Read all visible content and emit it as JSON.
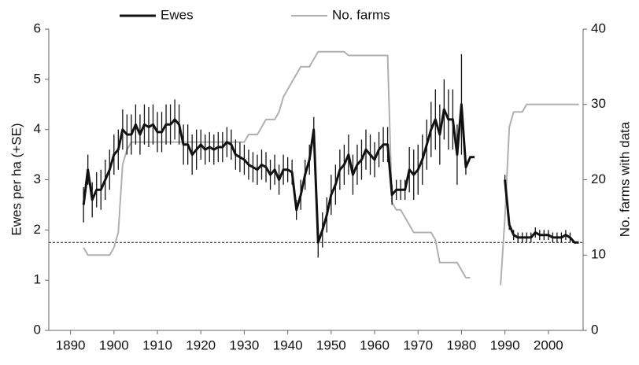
{
  "chart_data": {
    "type": "line",
    "x": [
      1893,
      1894,
      1895,
      1896,
      1897,
      1898,
      1899,
      1900,
      1901,
      1902,
      1903,
      1904,
      1905,
      1906,
      1907,
      1908,
      1909,
      1910,
      1911,
      1912,
      1913,
      1914,
      1915,
      1916,
      1917,
      1918,
      1919,
      1920,
      1921,
      1922,
      1923,
      1924,
      1925,
      1926,
      1927,
      1928,
      1929,
      1930,
      1931,
      1932,
      1933,
      1934,
      1935,
      1936,
      1937,
      1938,
      1939,
      1940,
      1941,
      1942,
      1943,
      1944,
      1945,
      1946,
      1947,
      1948,
      1949,
      1950,
      1951,
      1952,
      1953,
      1954,
      1955,
      1956,
      1957,
      1958,
      1959,
      1960,
      1961,
      1962,
      1963,
      1964,
      1965,
      1966,
      1967,
      1968,
      1969,
      1970,
      1971,
      1972,
      1973,
      1974,
      1975,
      1976,
      1977,
      1978,
      1979,
      1980,
      1981,
      1982,
      1983,
      1984,
      1985,
      1986,
      1987,
      1988,
      1989,
      1990,
      1991,
      1992,
      1993,
      1994,
      1995,
      1996,
      1997,
      1998,
      1999,
      2000,
      2001,
      2002,
      2003,
      2004,
      2005,
      2006,
      2007
    ],
    "series": [
      {
        "name": "Ewes",
        "color": "#111111",
        "values": [
          2.5,
          3.2,
          2.6,
          2.8,
          2.8,
          3.0,
          3.2,
          3.5,
          3.6,
          4.0,
          3.9,
          3.9,
          4.1,
          3.9,
          4.1,
          4.05,
          4.1,
          3.95,
          3.95,
          4.1,
          4.1,
          4.2,
          4.1,
          3.7,
          3.7,
          3.5,
          3.6,
          3.7,
          3.6,
          3.65,
          3.6,
          3.65,
          3.65,
          3.75,
          3.7,
          3.5,
          3.45,
          3.4,
          3.3,
          3.25,
          3.2,
          3.3,
          3.25,
          3.1,
          3.2,
          3.0,
          3.2,
          3.2,
          3.15,
          2.4,
          2.7,
          3.1,
          3.4,
          4.0,
          1.75,
          2.0,
          2.3,
          2.7,
          2.9,
          3.2,
          3.3,
          3.5,
          3.1,
          3.3,
          3.4,
          3.6,
          3.5,
          3.4,
          3.6,
          3.7,
          3.7,
          2.7,
          2.8,
          2.8,
          2.8,
          3.2,
          3.1,
          3.2,
          3.4,
          3.7,
          4.0,
          4.2,
          3.9,
          4.4,
          4.2,
          4.2,
          3.5,
          4.5,
          3.25,
          3.45,
          3.45,
          null,
          null,
          null,
          null,
          null,
          null,
          3.0,
          2.1,
          1.9,
          1.85,
          1.85,
          1.85,
          1.85,
          1.95,
          1.9,
          1.9,
          1.9,
          1.85,
          1.85,
          1.85,
          1.9,
          1.85,
          1.75,
          1.75
        ],
        "errors": [
          0.35,
          0.3,
          0.35,
          0.35,
          0.4,
          0.4,
          0.4,
          0.4,
          0.4,
          0.4,
          0.4,
          0.4,
          0.4,
          0.4,
          0.4,
          0.4,
          0.4,
          0.4,
          0.4,
          0.4,
          0.4,
          0.4,
          0.4,
          0.4,
          0.4,
          0.4,
          0.4,
          0.3,
          0.3,
          0.3,
          0.3,
          0.3,
          0.3,
          0.3,
          0.3,
          0.3,
          0.3,
          0.3,
          0.3,
          0.3,
          0.3,
          0.3,
          0.3,
          0.3,
          0.3,
          0.3,
          0.3,
          0.25,
          0.25,
          0.2,
          0.3,
          0.3,
          0.3,
          0.25,
          0.3,
          0.35,
          0.35,
          0.4,
          0.4,
          0.4,
          0.4,
          0.4,
          0.4,
          0.4,
          0.4,
          0.4,
          0.4,
          0.35,
          0.35,
          0.35,
          0.35,
          0.2,
          0.2,
          0.2,
          0.2,
          0.45,
          0.5,
          0.5,
          0.5,
          0.5,
          0.55,
          0.6,
          0.6,
          0.6,
          0.6,
          0.6,
          0.6,
          1.0,
          0.15,
          null,
          null,
          null,
          null,
          null,
          null,
          null,
          null,
          0.1,
          0.1,
          0.1,
          0.1,
          0.1,
          0.1,
          0.1,
          0.1,
          0.1,
          0.1,
          0.1,
          0.1,
          0.1,
          0.1,
          0.1,
          0.1,
          null,
          null
        ]
      },
      {
        "name": "No. farms",
        "color": "#b0b0b0",
        "axis": "y2",
        "values": [
          11,
          10,
          10,
          10,
          10,
          10,
          10,
          11,
          13,
          22,
          24,
          25,
          25,
          25,
          25,
          25,
          25,
          25,
          25,
          25,
          25,
          25,
          25,
          25,
          25,
          25,
          25,
          25,
          25,
          25,
          25,
          25,
          25,
          25,
          25,
          25,
          25,
          25,
          26,
          26,
          26,
          27,
          28,
          28,
          28,
          29,
          31,
          32,
          33,
          34,
          35,
          35,
          35,
          36,
          37,
          37,
          37,
          37,
          37,
          37,
          37,
          36.5,
          36.5,
          36.5,
          36.5,
          36.5,
          36.5,
          36.5,
          36.5,
          36.5,
          36.5,
          17,
          16,
          16,
          15,
          14,
          13,
          13,
          13,
          13,
          13,
          12,
          9,
          9,
          9,
          9,
          9,
          8,
          7,
          7,
          null,
          null,
          null,
          null,
          null,
          null,
          6,
          15,
          27,
          29,
          29,
          29,
          30,
          30,
          30,
          30,
          30,
          30,
          30,
          30,
          30,
          30,
          30,
          30,
          30
        ]
      }
    ],
    "reference_line": 1.75,
    "y_label": "Ewes per ha (+SE)",
    "y2_label": "No. farms with data",
    "xlim": [
      1885,
      2008
    ],
    "xticks": [
      1890,
      1900,
      1910,
      1920,
      1930,
      1940,
      1950,
      1960,
      1970,
      1980,
      1990,
      2000
    ],
    "ylim": [
      0,
      6
    ],
    "yticks": [
      0,
      1,
      2,
      3,
      4,
      5,
      6
    ],
    "y2lim": [
      0,
      40
    ],
    "y2ticks": [
      0,
      10,
      20,
      30,
      40
    ],
    "legend": "top"
  }
}
